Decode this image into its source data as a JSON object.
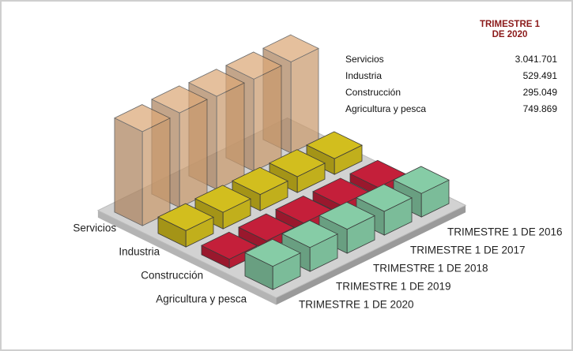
{
  "chart_data": {
    "type": "bar3d",
    "categories": [
      "TRIMESTRE 1 DE 2016",
      "TRIMESTRE 1 DE 2017",
      "TRIMESTRE 1 DE 2018",
      "TRIMESTRE 1 DE 2019",
      "TRIMESTRE 1 DE 2020"
    ],
    "series": [
      {
        "name": "Servicios",
        "color": "#dca878",
        "values": [
          2950000,
          2980000,
          3010000,
          3060000,
          3041701
        ],
        "value_labels": [
          null,
          null,
          null,
          null,
          "3.041.701"
        ]
      },
      {
        "name": "Industria",
        "color": "#d2be1e",
        "values": [
          510000,
          515000,
          525000,
          535000,
          529491
        ],
        "value_labels": [
          null,
          null,
          null,
          null,
          "529.491"
        ]
      },
      {
        "name": "Construcción",
        "color": "#c41f3a",
        "values": [
          270000,
          280000,
          290000,
          300000,
          295049
        ],
        "value_labels": [
          null,
          null,
          null,
          null,
          "295.049"
        ]
      },
      {
        "name": "Agricultura y pesca",
        "color": "#86cca6",
        "values": [
          760000,
          770000,
          780000,
          775000,
          749869
        ],
        "value_labels": [
          null,
          null,
          null,
          null,
          "749.869"
        ]
      }
    ]
  }
}
